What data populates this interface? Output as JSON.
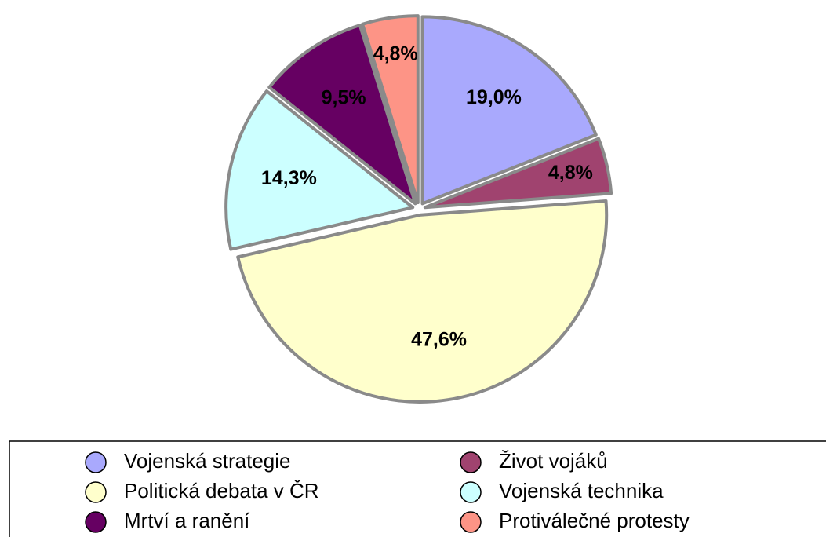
{
  "chart_data": {
    "type": "pie",
    "categories": [
      "Vojenská strategie",
      "Život vojáků",
      "Politická debata v ČR",
      "Vojenská technika",
      "Mrtví a ranění",
      "Protiválečné protesty"
    ],
    "values": [
      19.0,
      4.8,
      47.6,
      14.3,
      9.5,
      4.8
    ],
    "value_labels": [
      "19,0%",
      "4,8%",
      "47,6%",
      "14,3%",
      "9,5%",
      "4,8%"
    ],
    "colors": [
      "#a9a9fd",
      "#a0436f",
      "#ffffcc",
      "#ccffff",
      "#660062",
      "#fd9486"
    ],
    "legend": "bottom"
  }
}
